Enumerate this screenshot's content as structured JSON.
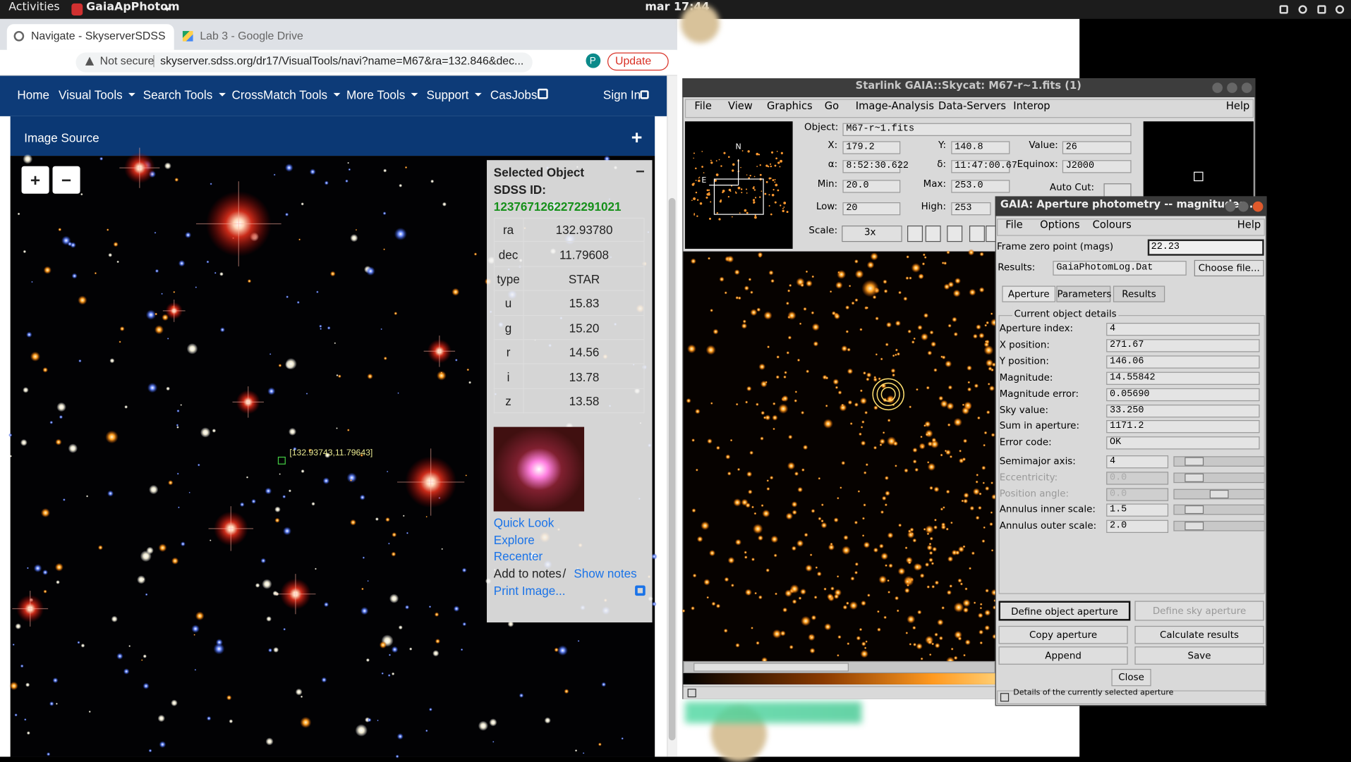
{
  "top_bar": {
    "activities": "Activities",
    "app": "GaiaApPhotom",
    "clock": "mar 17:44"
  },
  "browser": {
    "tabs": [
      {
        "title": "Navigate - SkyserverSDSS"
      },
      {
        "title": "Lab 3 - Google Drive"
      }
    ],
    "not_secure": "Not secure",
    "address": "skyserver.sdss.org/dr17/VisualTools/navi?name=M67&ra=132.846&dec...",
    "update": "Update",
    "profile": "P"
  },
  "nav": {
    "items": [
      "Home",
      "Visual Tools",
      "Search Tools",
      "CrossMatch Tools",
      "More Tools",
      "Support",
      "CasJobs"
    ],
    "sign_in": "Sign In"
  },
  "image_source": {
    "title": "Image Source",
    "expand": "+",
    "zoom_in": "+",
    "zoom_out": "−",
    "marker_label": "[132.93743,11.79643]"
  },
  "selected_object": {
    "title": "Selected Object",
    "collapse": "−",
    "sdss_id_label": "SDSS ID:",
    "sdss_id": "1237671262272291021",
    "rows": [
      [
        "ra",
        "132.93780"
      ],
      [
        "dec",
        "11.79608"
      ],
      [
        "type",
        "STAR"
      ],
      [
        "u",
        "15.83"
      ],
      [
        "g",
        "15.20"
      ],
      [
        "r",
        "14.56"
      ],
      [
        "i",
        "13.78"
      ],
      [
        "z",
        "13.58"
      ]
    ],
    "links": [
      "Quick Look",
      "Explore",
      "Recenter"
    ],
    "add_to_notes": "Add to notes",
    "separator": "/",
    "show_notes": "Show notes",
    "print_image": "Print Image..."
  },
  "skycat": {
    "title": "Starlink GAIA::Skycat: M67-r~1.fits (1)",
    "menu": [
      "File",
      "View",
      "Graphics",
      "Go",
      "Image-Analysis",
      "Data-Servers",
      "Interop"
    ],
    "help": "Help",
    "fields": [
      {
        "label": "Object:",
        "value": "M67-r~1.fits"
      },
      {
        "label": "X:",
        "value": "179.2"
      },
      {
        "label": "Y:",
        "value": "140.8"
      },
      {
        "label": "Value:",
        "value": "26"
      },
      {
        "label": "α:",
        "value": "8:52:30.622"
      },
      {
        "label": "δ:",
        "value": "11:47:00.67"
      },
      {
        "label": "Equinox:",
        "value": "J2000"
      },
      {
        "label": "Min:",
        "value": "20.0"
      },
      {
        "label": "Max:",
        "value": "253.0"
      },
      {
        "label": "Low:",
        "value": "20"
      },
      {
        "label": "High:",
        "value": "253"
      }
    ],
    "auto_cut": "Auto Cut:",
    "scale_label": "Scale:",
    "scale": "3x",
    "compass": {
      "north": "N",
      "east": "E"
    }
  },
  "aperture": {
    "title": "GAIA: Aperture photometry -- magnitudes...",
    "menu": [
      "File",
      "Options",
      "Colours"
    ],
    "help": "Help",
    "zero_point_label": "Frame zero point (mags)",
    "zero_point": "22.23",
    "results_label": "Results:",
    "results_file": "GaiaPhotomLog.Dat",
    "choose_file": "Choose file...",
    "tabs": [
      "Aperture",
      "Parameters",
      "Results"
    ],
    "section": "Current object details",
    "details": [
      {
        "label": "Aperture index:",
        "value": "4"
      },
      {
        "label": "X position:",
        "value": "271.67"
      },
      {
        "label": "Y position:",
        "value": "146.06"
      },
      {
        "label": "Magnitude:",
        "value": "14.55842"
      },
      {
        "label": "Magnitude error:",
        "value": "0.05690"
      },
      {
        "label": "Sky value:",
        "value": "33.250"
      },
      {
        "label": "Sum in aperture:",
        "value": "1171.2"
      },
      {
        "label": "Error code:",
        "value": "OK"
      }
    ],
    "sliders": [
      {
        "label": "Semimajor axis:",
        "value": "4"
      },
      {
        "label": "Eccentricity:",
        "value": "0.0"
      },
      {
        "label": "Position angle:",
        "value": "0.0"
      },
      {
        "label": "Annulus inner scale:",
        "value": "1.5"
      },
      {
        "label": "Annulus outer scale:",
        "value": "2.0"
      }
    ],
    "buttons": [
      "Define object aperture",
      "Define sky aperture",
      "Copy aperture",
      "Calculate results",
      "Append",
      "Save"
    ],
    "close": "Close",
    "status": "Details of the currently selected aperture"
  }
}
